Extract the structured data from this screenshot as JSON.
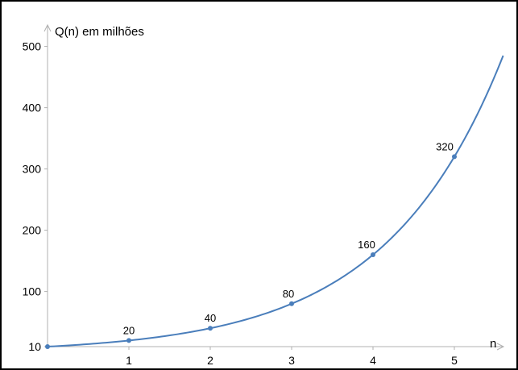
{
  "chart_data": {
    "type": "line",
    "ylabel": "Q(n) em milhões",
    "xlabel": "n",
    "xlim": [
      0,
      5.6
    ],
    "ylim": [
      10,
      520
    ],
    "x_ticks": [
      1,
      2,
      3,
      4,
      5
    ],
    "y_ticks": [
      10,
      100,
      200,
      300,
      400,
      500
    ],
    "grid": false,
    "series": [
      {
        "color": "#4a7ebb",
        "points": [
          {
            "x": 0,
            "y": 10,
            "label": ""
          },
          {
            "x": 1,
            "y": 20,
            "label": "20"
          },
          {
            "x": 2,
            "y": 40,
            "label": "40"
          },
          {
            "x": 3,
            "y": 80,
            "label": "80"
          },
          {
            "x": 4,
            "y": 160,
            "label": "160"
          },
          {
            "x": 5,
            "y": 320,
            "label": "320"
          }
        ],
        "curve": {
          "a": 10,
          "b": 2,
          "x_start": 0,
          "x_end": 5.6
        }
      }
    ],
    "axis_color": "#b0b0b0"
  }
}
